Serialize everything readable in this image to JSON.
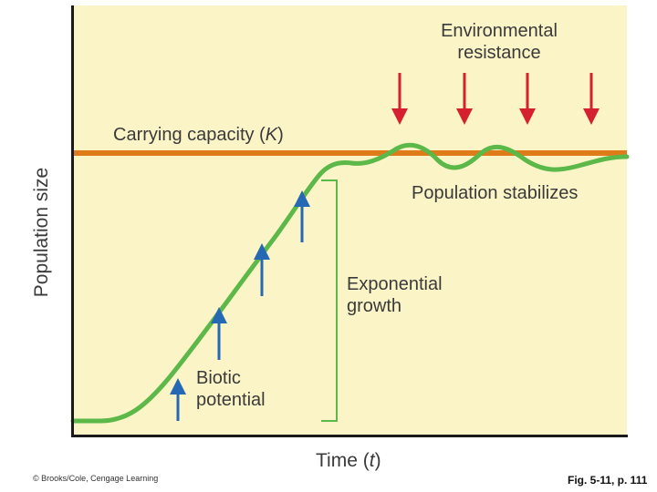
{
  "axes": {
    "ylabel": "Population size",
    "xlabel_main": "Time (",
    "xlabel_var": "t",
    "xlabel_close": ")"
  },
  "labels": {
    "environmental_resistance_line1": "Environmental",
    "environmental_resistance_line2": "resistance",
    "carrying_capacity_main": "Carrying capacity (",
    "carrying_capacity_var": "K",
    "carrying_capacity_close": ")",
    "population_stabilizes": "Population stabilizes",
    "exponential_growth_line1": "Exponential",
    "exponential_growth_line2": "growth",
    "biotic_potential_line1": "Biotic",
    "biotic_potential_line2": "potential"
  },
  "footer": {
    "copyright": "© Brooks/Cole, Cengage Learning",
    "figure_ref": "Fig. 5-11, p. 111"
  },
  "colors": {
    "plot_background": "#fbf4c6",
    "carrying_capacity_line": "#e07b1a",
    "growth_curve": "#5cb848",
    "environmental_resistance_arrows": "#d4202f",
    "biotic_potential_arrows": "#2568b3",
    "bracket": "#5cb848"
  }
}
